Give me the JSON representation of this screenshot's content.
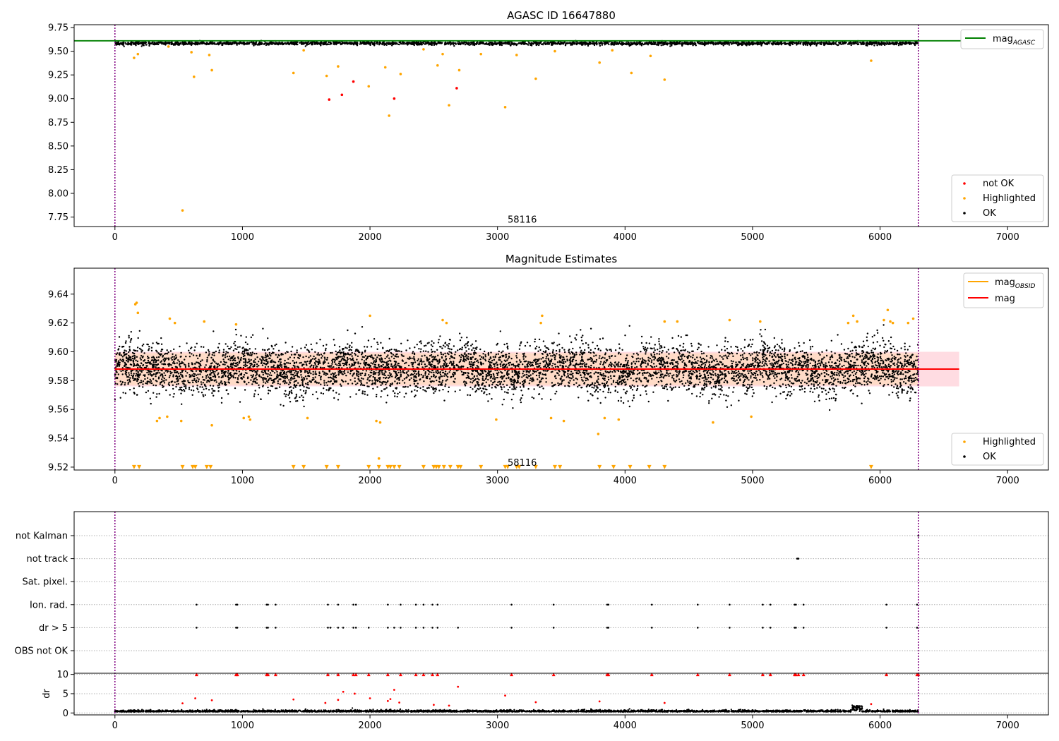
{
  "chart_data": [
    {
      "type": "scatter",
      "title": "AGASC ID 16647880",
      "xlim": [
        -320,
        7320
      ],
      "ylim": [
        7.65,
        9.78
      ],
      "xticks": [
        0,
        1000,
        2000,
        3000,
        4000,
        5000,
        6000,
        7000
      ],
      "yticks": [
        7.75,
        8.0,
        8.25,
        8.5,
        8.75,
        9.0,
        9.25,
        9.5,
        9.75
      ],
      "ytick_labels": [
        "7.75",
        "8.00",
        "8.25",
        "8.50",
        "8.75",
        "9.00",
        "9.25",
        "9.50",
        "9.75"
      ],
      "vlines": [
        0,
        6300
      ],
      "annotation": {
        "text": "58116",
        "x": 3050,
        "y": 7.72
      },
      "hline": {
        "y": 9.61,
        "label_main": "mag",
        "label_sub": "AGASC",
        "color": "#008000"
      },
      "ok_band": {
        "x_range": [
          0,
          6300
        ],
        "center": 9.583,
        "spread": 0.009
      },
      "series": [
        {
          "name": "not OK",
          "color": "#ff0000",
          "points": [
            [
              1680,
              8.99
            ],
            [
              1780,
              9.04
            ],
            [
              1870,
              9.18
            ],
            [
              2190,
              9.0
            ],
            [
              2680,
              9.11
            ]
          ]
        },
        {
          "name": "Highlighted",
          "color": "#ffa500",
          "points": [
            [
              150,
              9.43
            ],
            [
              180,
              9.47
            ],
            [
              530,
              7.82
            ],
            [
              620,
              9.23
            ],
            [
              760,
              9.3
            ],
            [
              1400,
              9.27
            ],
            [
              1660,
              9.24
            ],
            [
              1750,
              9.34
            ],
            [
              1990,
              9.13
            ],
            [
              2120,
              9.33
            ],
            [
              2150,
              8.82
            ],
            [
              2240,
              9.26
            ],
            [
              2530,
              9.35
            ],
            [
              2620,
              8.93
            ],
            [
              2700,
              9.3
            ],
            [
              3060,
              8.91
            ],
            [
              3300,
              9.21
            ],
            [
              3800,
              9.38
            ],
            [
              4050,
              9.27
            ],
            [
              4200,
              9.45
            ],
            [
              4310,
              9.2
            ],
            [
              5930,
              9.4
            ],
            [
              2420,
              9.52
            ],
            [
              2570,
              9.47
            ],
            [
              2870,
              9.47
            ],
            [
              3150,
              9.46
            ],
            [
              3450,
              9.5
            ],
            [
              3900,
              9.51
            ],
            [
              1480,
              9.51
            ],
            [
              740,
              9.46
            ],
            [
              600,
              9.49
            ],
            [
              420,
              9.55
            ]
          ]
        },
        {
          "name": "OK",
          "color": "#000000",
          "points": []
        }
      ],
      "legends": [
        {
          "position": "top-right",
          "entries": [
            {
              "label": "mag",
              "sub": "AGASC",
              "kind": "line",
              "color": "#008000"
            }
          ]
        },
        {
          "position": "bottom-right",
          "entries": [
            {
              "label": "not OK",
              "kind": "dot",
              "color": "#ff0000"
            },
            {
              "label": "Highlighted",
              "kind": "dot",
              "color": "#ffa500"
            },
            {
              "label": "OK",
              "kind": "dot",
              "color": "#000000"
            }
          ]
        }
      ]
    },
    {
      "type": "scatter",
      "title": "Magnitude Estimates",
      "xlim": [
        -320,
        7320
      ],
      "ylim": [
        9.518,
        9.658
      ],
      "xticks": [
        0,
        1000,
        2000,
        3000,
        4000,
        5000,
        6000,
        7000
      ],
      "yticks": [
        9.52,
        9.54,
        9.56,
        9.58,
        9.6,
        9.62,
        9.64
      ],
      "ytick_labels": [
        "9.52",
        "9.54",
        "9.56",
        "9.58",
        "9.60",
        "9.62",
        "9.64"
      ],
      "vlines": [
        0,
        6300
      ],
      "annotation": {
        "text": "58116",
        "x": 3050,
        "y": 9.523
      },
      "band_agasc": {
        "x_range": [
          0,
          6620
        ],
        "y_range": [
          9.576,
          9.6
        ],
        "color": "#ffc0cb"
      },
      "band_obsid": {
        "x_range": [
          0,
          6300
        ],
        "y_range": [
          9.577,
          9.599
        ],
        "color": "#ffdab9"
      },
      "mag_obsid_line": {
        "y": 9.588,
        "x_range": [
          0,
          6300
        ],
        "color": "#ffa500"
      },
      "mag_line": {
        "y": 9.588,
        "x_range": [
          0,
          6620
        ],
        "color": "#ff0000"
      },
      "ok_band": {
        "x_range": [
          0,
          6300
        ],
        "center": 9.588,
        "spread": 0.0085
      },
      "series": [
        {
          "name": "Highlighted",
          "color": "#ffa500",
          "points": [
            [
              160,
              9.633
            ],
            [
              170,
              9.634
            ],
            [
              180,
              9.627
            ],
            [
              330,
              9.552
            ],
            [
              350,
              9.554
            ],
            [
              410,
              9.555
            ],
            [
              430,
              9.623
            ],
            [
              470,
              9.62
            ],
            [
              520,
              9.552
            ],
            [
              700,
              9.621
            ],
            [
              760,
              9.549
            ],
            [
              950,
              9.619
            ],
            [
              1010,
              9.554
            ],
            [
              1050,
              9.555
            ],
            [
              1060,
              9.553
            ],
            [
              1510,
              9.554
            ],
            [
              2000,
              9.625
            ],
            [
              2050,
              9.552
            ],
            [
              2070,
              9.526
            ],
            [
              2080,
              9.551
            ],
            [
              2570,
              9.622
            ],
            [
              2600,
              9.62
            ],
            [
              2990,
              9.553
            ],
            [
              3350,
              9.625
            ],
            [
              3340,
              9.62
            ],
            [
              3420,
              9.554
            ],
            [
              3520,
              9.552
            ],
            [
              3790,
              9.543
            ],
            [
              3840,
              9.554
            ],
            [
              3950,
              9.553
            ],
            [
              4310,
              9.621
            ],
            [
              4410,
              9.621
            ],
            [
              4690,
              9.551
            ],
            [
              4820,
              9.622
            ],
            [
              4990,
              9.555
            ],
            [
              5060,
              9.621
            ],
            [
              5750,
              9.62
            ],
            [
              5790,
              9.625
            ],
            [
              5820,
              9.621
            ],
            [
              6030,
              9.622
            ],
            [
              6060,
              9.629
            ],
            [
              6080,
              9.621
            ],
            [
              6100,
              9.62
            ],
            [
              6220,
              9.62
            ],
            [
              6260,
              9.623
            ]
          ]
        },
        {
          "name": "OK",
          "color": "#000000",
          "points": []
        }
      ],
      "below_markers": {
        "y": 9.52,
        "color": "#ffa500",
        "x": [
          150,
          190,
          530,
          610,
          630,
          720,
          750,
          1400,
          1480,
          1660,
          1750,
          1990,
          2070,
          2140,
          2160,
          2190,
          2230,
          2420,
          2500,
          2520,
          2540,
          2580,
          2630,
          2690,
          2710,
          2870,
          3060,
          3080,
          3150,
          3170,
          3300,
          3450,
          3490,
          3800,
          3910,
          4040,
          4190,
          4310,
          5930
        ]
      },
      "legends": [
        {
          "position": "top-right",
          "entries": [
            {
              "label": "mag",
              "sub": "OBSID",
              "kind": "line",
              "color": "#ffa500"
            },
            {
              "label": "mag",
              "sub": "",
              "kind": "line",
              "color": "#ff0000"
            }
          ]
        },
        {
          "position": "bottom-right",
          "entries": [
            {
              "label": "Highlighted",
              "kind": "dot",
              "color": "#ffa500"
            },
            {
              "label": "OK",
              "kind": "dot",
              "color": "#000000"
            }
          ]
        }
      ]
    },
    {
      "type": "scatter",
      "title": "",
      "xlim": [
        -320,
        7320
      ],
      "flag_rows": [
        "not Kalman",
        "not track",
        "Sat. pixel.",
        "Ion. rad.",
        "dr > 5",
        "OBS not OK"
      ],
      "flag_points": {
        "not Kalman": [
          6300
        ],
        "not track": [
          5350,
          5360
        ],
        "Sat. pixel.": [],
        "Ion. rad.": [
          640,
          950,
          960,
          1190,
          1200,
          1260,
          1670,
          1750,
          1870,
          1890,
          2140,
          2240,
          2360,
          2420,
          2490,
          2530,
          3110,
          3440,
          3860,
          3870,
          4210,
          4570,
          4820,
          5080,
          5140,
          5330,
          5340,
          5400,
          6050,
          6290
        ],
        "dr > 5": [
          640,
          950,
          960,
          1190,
          1200,
          1260,
          1670,
          1690,
          1750,
          1790,
          1870,
          1890,
          1990,
          2140,
          2190,
          2240,
          2360,
          2420,
          2490,
          2530,
          2690,
          3110,
          3440,
          3860,
          3870,
          4210,
          4570,
          4820,
          5080,
          5140,
          5330,
          5340,
          5400,
          6050,
          6290
        ],
        "OBS not OK": []
      },
      "dr": {
        "ylabel": "dr",
        "ylim": [
          -0.5,
          10.3
        ],
        "yticks": [
          0,
          5,
          10
        ],
        "ytick_labels": [
          "0",
          "5",
          "10"
        ],
        "clip_value": 10,
        "clipped_x": [
          640,
          950,
          960,
          1190,
          1200,
          1260,
          1670,
          1750,
          1870,
          1890,
          1990,
          2140,
          2240,
          2360,
          2420,
          2490,
          2530,
          3110,
          3440,
          3860,
          3870,
          4210,
          4570,
          4820,
          5080,
          5140,
          5330,
          5340,
          5360,
          5400,
          6050,
          6290,
          6300
        ],
        "outliers": [
          [
            630,
            3.8
          ],
          [
            760,
            3.3
          ],
          [
            1400,
            3.5
          ],
          [
            1650,
            2.6
          ],
          [
            1790,
            5.5
          ],
          [
            1750,
            3.4
          ],
          [
            1880,
            5.0
          ],
          [
            2000,
            3.8
          ],
          [
            2140,
            3.1
          ],
          [
            2160,
            3.6
          ],
          [
            2190,
            6.0
          ],
          [
            2230,
            2.7
          ],
          [
            2690,
            6.8
          ],
          [
            3060,
            4.5
          ],
          [
            3300,
            2.8
          ],
          [
            3800,
            3.0
          ],
          [
            530,
            2.5
          ],
          [
            4310,
            2.6
          ],
          [
            5930,
            2.3
          ],
          [
            2500,
            2.1
          ],
          [
            2620,
            1.9
          ]
        ],
        "baseline_center": 0.3,
        "baseline_spread": 0.25,
        "bump_x": [
          5780,
          5860
        ],
        "bump_height": 1.4
      },
      "ok_color": "#000000",
      "outlier_color": "#ff0000"
    }
  ]
}
